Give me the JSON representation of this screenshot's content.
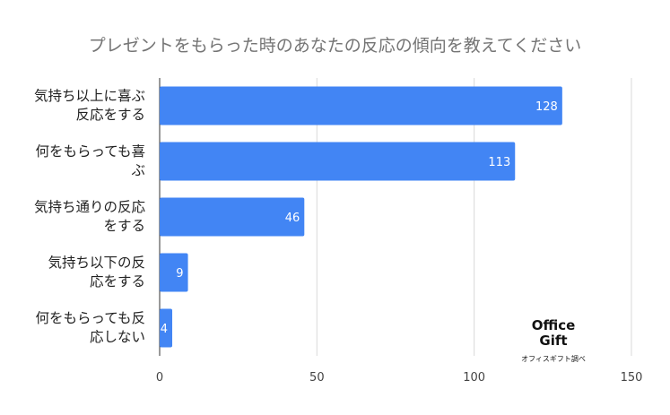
{
  "chart_data": {
    "type": "bar",
    "orientation": "horizontal",
    "title": "プレゼントをもらった時のあなたの反応の傾向を教えてください",
    "categories": [
      "気持ち以上に喜ぶ反応をする",
      "何をもらっても喜ぶ",
      "気持ち通りの反応をする",
      "気持ち以下の反応をする",
      "何をもらっても反応しない"
    ],
    "category_lines": [
      [
        "気持ち以上に喜ぶ",
        "反応をする"
      ],
      [
        "何をもらっても喜",
        "ぶ"
      ],
      [
        "気持ち通りの反応",
        "をする"
      ],
      [
        "気持ち以下の反",
        "応をする"
      ],
      [
        "何をもらっても反",
        "応しない"
      ]
    ],
    "values": [
      128,
      113,
      46,
      9,
      4
    ],
    "xlim": [
      0,
      150
    ],
    "xticks": [
      0,
      50,
      100,
      150
    ],
    "xlabel": "",
    "ylabel": "",
    "grid": true,
    "data_labels": true,
    "bar_color": "#4285f4",
    "gridline_color": "#d9d9d9",
    "label_color": "#ffffff"
  },
  "watermark": {
    "logo_line1": "Office",
    "logo_line2": "Gift",
    "credit": "オフィスギフト調べ"
  }
}
